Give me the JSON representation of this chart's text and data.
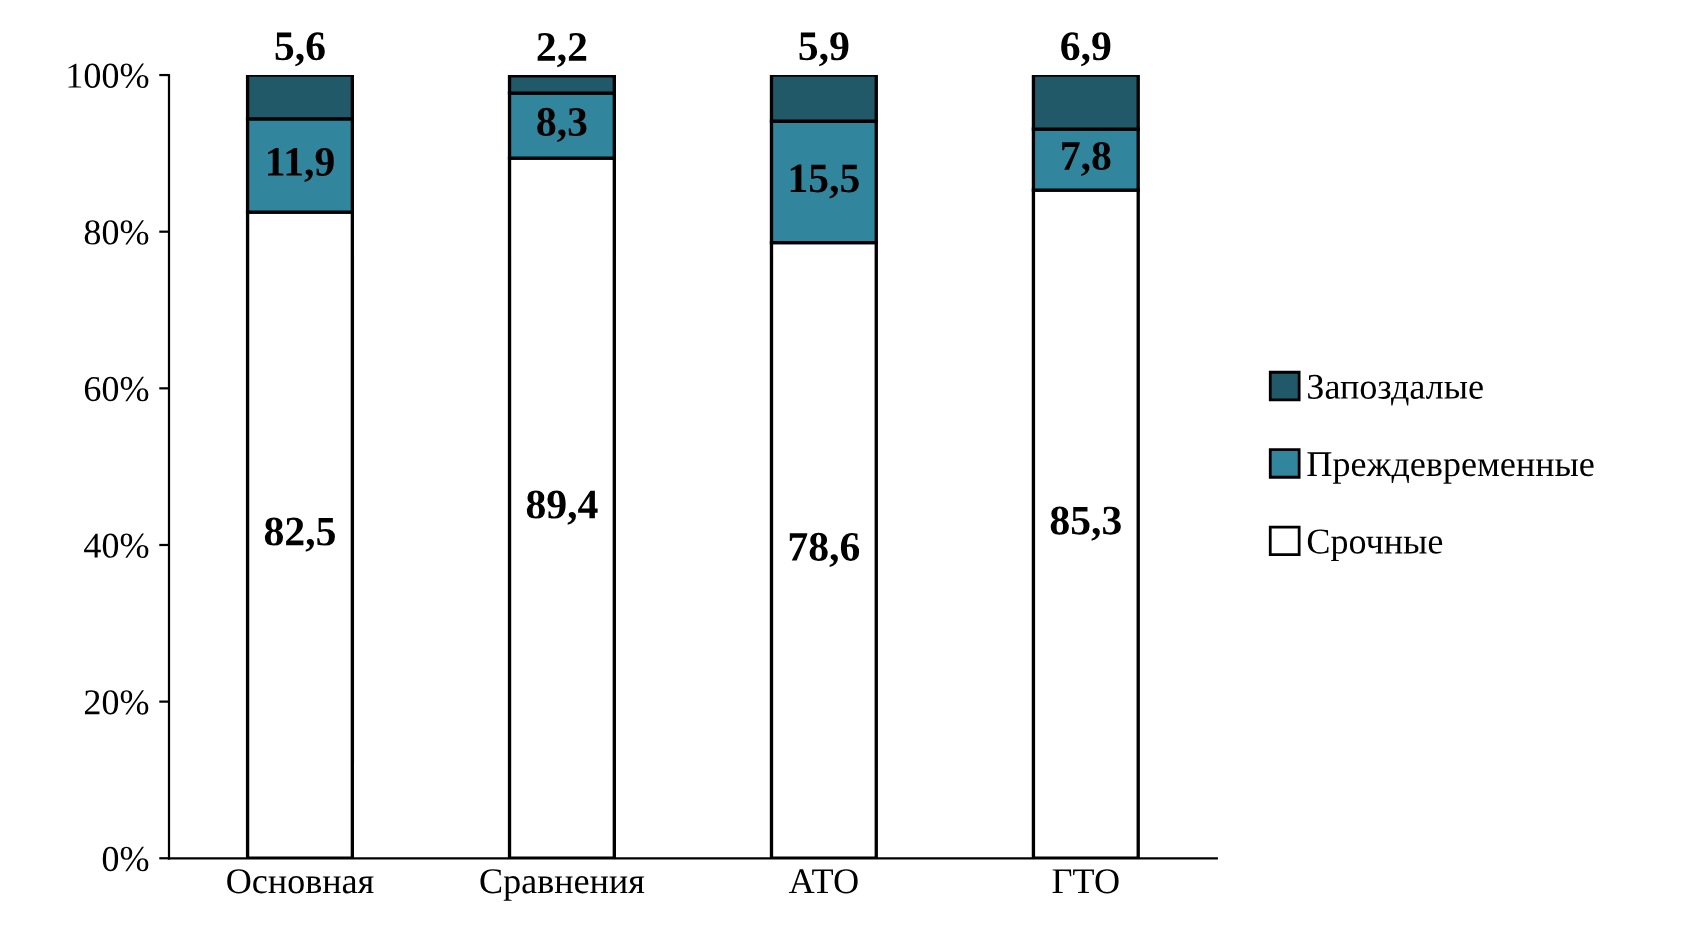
{
  "chart_data": {
    "type": "bar",
    "stacked": true,
    "categories": [
      "Основная",
      "Сравнения",
      "АТО",
      "ГТО"
    ],
    "series": [
      {
        "name": "Срочные",
        "color": "#ffffff",
        "values": [
          82.5,
          89.4,
          78.6,
          85.3
        ],
        "value_labels": [
          "82,5",
          "89,4",
          "78,6",
          "85,3"
        ]
      },
      {
        "name": "Преждевременные",
        "color": "#31859c",
        "values": [
          11.9,
          8.3,
          15.5,
          7.8
        ],
        "value_labels": [
          "11,9",
          "8,3",
          "15,5",
          "7,8"
        ]
      },
      {
        "name": "Запоздалые",
        "color": "#215968",
        "values": [
          5.6,
          2.2,
          5.9,
          6.9
        ],
        "value_labels": [
          "5,6",
          "2,2",
          "5,9",
          "6,9"
        ]
      }
    ],
    "ylim": [
      0,
      100
    ],
    "yticks": [
      {
        "value": 0,
        "label": "0%"
      },
      {
        "value": 20,
        "label": "20%"
      },
      {
        "value": 40,
        "label": "40%"
      },
      {
        "value": 60,
        "label": "60%"
      },
      {
        "value": 80,
        "label": "80%"
      },
      {
        "value": 100,
        "label": "100%"
      }
    ],
    "legend": "right",
    "grid": false
  }
}
